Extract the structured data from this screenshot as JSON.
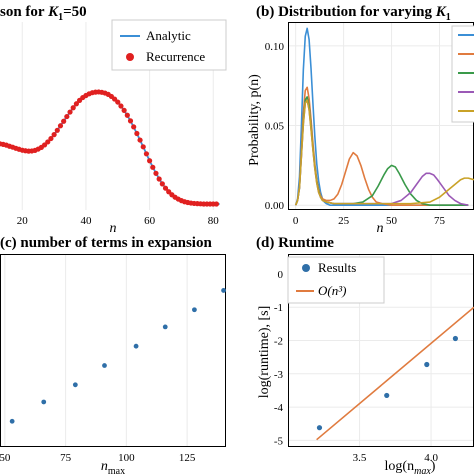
{
  "chart_data": [
    {
      "id": "a",
      "type": "line",
      "title_prefix": "son for ",
      "title_var": "K",
      "title_sub": "1",
      "title_suffix": "=50",
      "xlabel": "n",
      "ylabel": "",
      "xlim": [
        13,
        84
      ],
      "ylim": [
        0,
        0.1
      ],
      "xticks": [
        20,
        40,
        60,
        80
      ],
      "yticks": [],
      "grid": true,
      "legend": "top-right",
      "legend_entries": [
        "Analytic",
        "Recurrence"
      ],
      "series": [
        {
          "name": "Analytic",
          "color": "#3b8fd6",
          "x": [
            10,
            12,
            14,
            16,
            18,
            20,
            22,
            24,
            26,
            28,
            30,
            32,
            34,
            36,
            38,
            40,
            42,
            44,
            46,
            47,
            48,
            50,
            52,
            54,
            56,
            58,
            60,
            62,
            64,
            66,
            68,
            70,
            72,
            74,
            76,
            78,
            80,
            82
          ],
          "y": [
            0.0362,
            0.0356,
            0.0349,
            0.0339,
            0.0328,
            0.0318,
            0.0313,
            0.0317,
            0.0333,
            0.0362,
            0.0401,
            0.0448,
            0.0497,
            0.0544,
            0.0583,
            0.0609,
            0.0624,
            0.0628,
            0.0622,
            0.0615,
            0.0604,
            0.0574,
            0.053,
            0.0474,
            0.0407,
            0.0336,
            0.0262,
            0.0195,
            0.0139,
            0.0097,
            0.0068,
            0.005,
            0.004,
            0.0035,
            0.0033,
            0.0032,
            0.0032,
            0.0032
          ]
        },
        {
          "name": "Recurrence",
          "color": "#e02020",
          "x": [
            13,
            14,
            15,
            16,
            17,
            18,
            19,
            20,
            21,
            22,
            23,
            24,
            25,
            26,
            27,
            28,
            29,
            30,
            31,
            32,
            33,
            34,
            35,
            36,
            37,
            38,
            39,
            40,
            41,
            42,
            43,
            44,
            45,
            46,
            47,
            48,
            49,
            50,
            51,
            52,
            53,
            54,
            55,
            56,
            57,
            58,
            59,
            60,
            61,
            62,
            63,
            64,
            65,
            66,
            67,
            68,
            69,
            70,
            71,
            72,
            73,
            74,
            75,
            76,
            77,
            78,
            79,
            80,
            81
          ],
          "y": [
            0.0352,
            0.0349,
            0.0345,
            0.0339,
            0.0334,
            0.0328,
            0.0323,
            0.0318,
            0.0315,
            0.0313,
            0.0314,
            0.0317,
            0.0324,
            0.0333,
            0.0346,
            0.0362,
            0.038,
            0.0401,
            0.0424,
            0.0448,
            0.0472,
            0.0497,
            0.0521,
            0.0544,
            0.0565,
            0.0583,
            0.0598,
            0.0609,
            0.0618,
            0.0624,
            0.0627,
            0.0628,
            0.0626,
            0.0622,
            0.0615,
            0.0604,
            0.059,
            0.0574,
            0.0553,
            0.053,
            0.0504,
            0.0474,
            0.0442,
            0.0407,
            0.0372,
            0.0336,
            0.0299,
            0.0262,
            0.0227,
            0.0195,
            0.0165,
            0.0139,
            0.0116,
            0.0097,
            0.0081,
            0.0068,
            0.0058,
            0.005,
            0.0044,
            0.004,
            0.0037,
            0.0035,
            0.0034,
            0.0033,
            0.0032,
            0.0032,
            0.0032,
            0.0032,
            0.0032
          ]
        }
      ]
    },
    {
      "id": "b",
      "type": "line",
      "title_prefix": "(b) Distribution for varying ",
      "title_var": "K",
      "title_sub": "1",
      "title_suffix": "",
      "xlabel": "n",
      "ylabel": "Probability, p(n)",
      "xlim": [
        -4,
        93
      ],
      "ylim": [
        -0.003,
        0.115
      ],
      "xticks": [
        0,
        25,
        50,
        75
      ],
      "yticks": [
        0.0,
        0.05,
        0.1
      ],
      "ytick_labels": [
        "0.00",
        "0.05",
        "0.10"
      ],
      "grid": true,
      "legend": "top-right",
      "series": [
        {
          "color": "#3b8fd6",
          "x": [
            0,
            1,
            2,
            3,
            4,
            5,
            6,
            7,
            8,
            9,
            10,
            11,
            12,
            13,
            14,
            15,
            16,
            18,
            20,
            25,
            30,
            40,
            50,
            60,
            70,
            80,
            90
          ],
          "y": [
            0.0,
            0.004,
            0.018,
            0.05,
            0.085,
            0.106,
            0.111,
            0.104,
            0.086,
            0.064,
            0.043,
            0.026,
            0.015,
            0.008,
            0.004,
            0.002,
            0.001,
            0.0,
            0.0,
            0.0,
            0.0,
            0.0,
            0.0,
            0.0,
            0.0,
            0.0,
            0.0
          ]
        },
        {
          "color": "#e07b3f",
          "x": [
            0,
            1,
            2,
            3,
            4,
            5,
            6,
            7,
            8,
            9,
            10,
            11,
            12,
            13,
            14,
            16,
            18,
            20,
            22,
            24,
            26,
            28,
            30,
            32,
            34,
            36,
            38,
            40,
            42,
            45,
            50,
            60,
            70,
            80,
            90
          ],
          "y": [
            0.0,
            0.003,
            0.012,
            0.035,
            0.058,
            0.072,
            0.074,
            0.067,
            0.054,
            0.039,
            0.026,
            0.016,
            0.01,
            0.006,
            0.004,
            0.003,
            0.003,
            0.004,
            0.007,
            0.013,
            0.021,
            0.029,
            0.033,
            0.031,
            0.025,
            0.017,
            0.01,
            0.005,
            0.002,
            0.001,
            0.0,
            0.0,
            0.0,
            0.0,
            0.0
          ]
        },
        {
          "color": "#3a9a4a",
          "x": [
            0,
            1,
            2,
            3,
            4,
            5,
            6,
            7,
            8,
            9,
            10,
            11,
            12,
            13,
            14,
            16,
            20,
            25,
            30,
            35,
            40,
            43,
            46,
            48,
            50,
            52,
            54,
            57,
            60,
            63,
            66,
            70,
            75,
            80,
            90
          ],
          "y": [
            0.0,
            0.003,
            0.011,
            0.032,
            0.053,
            0.066,
            0.068,
            0.062,
            0.05,
            0.036,
            0.024,
            0.015,
            0.009,
            0.005,
            0.003,
            0.002,
            0.001,
            0.001,
            0.001,
            0.002,
            0.006,
            0.012,
            0.019,
            0.023,
            0.025,
            0.024,
            0.02,
            0.013,
            0.007,
            0.003,
            0.001,
            0.0,
            0.0,
            0.0,
            0.0
          ]
        },
        {
          "color": "#9b59b6",
          "x": [
            0,
            1,
            2,
            3,
            4,
            5,
            6,
            7,
            8,
            9,
            10,
            11,
            12,
            13,
            14,
            16,
            20,
            30,
            40,
            50,
            55,
            60,
            63,
            66,
            68,
            70,
            72,
            74,
            77,
            80,
            83,
            86,
            90
          ],
          "y": [
            0.0,
            0.003,
            0.011,
            0.031,
            0.051,
            0.064,
            0.066,
            0.06,
            0.048,
            0.035,
            0.023,
            0.014,
            0.008,
            0.005,
            0.003,
            0.002,
            0.001,
            0.001,
            0.001,
            0.001,
            0.003,
            0.008,
            0.013,
            0.018,
            0.02,
            0.02,
            0.019,
            0.016,
            0.011,
            0.006,
            0.003,
            0.001,
            0.0
          ]
        },
        {
          "color": "#c9a227",
          "x": [
            0,
            1,
            2,
            3,
            4,
            5,
            6,
            7,
            8,
            9,
            10,
            11,
            12,
            13,
            14,
            16,
            20,
            30,
            40,
            50,
            60,
            70,
            75,
            80,
            83,
            86,
            88,
            90,
            93
          ],
          "y": [
            0.0,
            0.003,
            0.011,
            0.031,
            0.051,
            0.064,
            0.066,
            0.06,
            0.048,
            0.035,
            0.023,
            0.014,
            0.008,
            0.005,
            0.003,
            0.002,
            0.001,
            0.001,
            0.001,
            0.001,
            0.001,
            0.002,
            0.005,
            0.01,
            0.013,
            0.016,
            0.017,
            0.017,
            0.016
          ]
        }
      ]
    },
    {
      "id": "c",
      "type": "scatter",
      "title": "number of terms in expansion",
      "xlabel": "n",
      "xlabel_sub": "max",
      "ylabel": "",
      "xlim": [
        48,
        141
      ],
      "ylim": [
        0,
        9
      ],
      "xticks": [
        50,
        75,
        100,
        125
      ],
      "grid": true,
      "legend": "none",
      "series": [
        {
          "color": "#2f6fa8",
          "x": [
            53,
            66,
            79,
            91,
            104,
            116,
            128,
            140
          ],
          "y": [
            1.2,
            2.1,
            2.9,
            3.8,
            4.7,
            5.6,
            6.4,
            7.3
          ]
        }
      ]
    },
    {
      "id": "d",
      "type": "scatter",
      "title": "(d) Runtime",
      "xlabel": "log(n",
      "xlabel_sub": "max",
      "xlabel_suffix": ")",
      "ylabel": "log(runtime), [s]",
      "xlim": [
        3.0,
        4.3
      ],
      "ylim": [
        -5.2,
        0.6
      ],
      "xticks": [
        3.5,
        4.0
      ],
      "xtick_labels": [
        "3.5",
        "4.0"
      ],
      "yticks": [
        -5,
        -4,
        -3,
        -2,
        -1,
        0
      ],
      "ytick_labels": [
        "-5",
        "-4",
        "-3",
        "-2",
        "-1",
        "0"
      ],
      "grid": true,
      "legend": "top-left",
      "legend_entries": [
        "Results",
        "O(n³)"
      ],
      "series": [
        {
          "name": "Results",
          "color": "#2f6fa8",
          "x": [
            3.22,
            3.69,
            3.97,
            4.17
          ],
          "y": [
            -4.62,
            -3.65,
            -2.72,
            -1.94
          ]
        },
        {
          "name": "O(n³)",
          "color": "#e07b3f",
          "x": [
            3.2,
            4.3
          ],
          "y": [
            -4.98,
            -1.0
          ]
        }
      ]
    }
  ]
}
